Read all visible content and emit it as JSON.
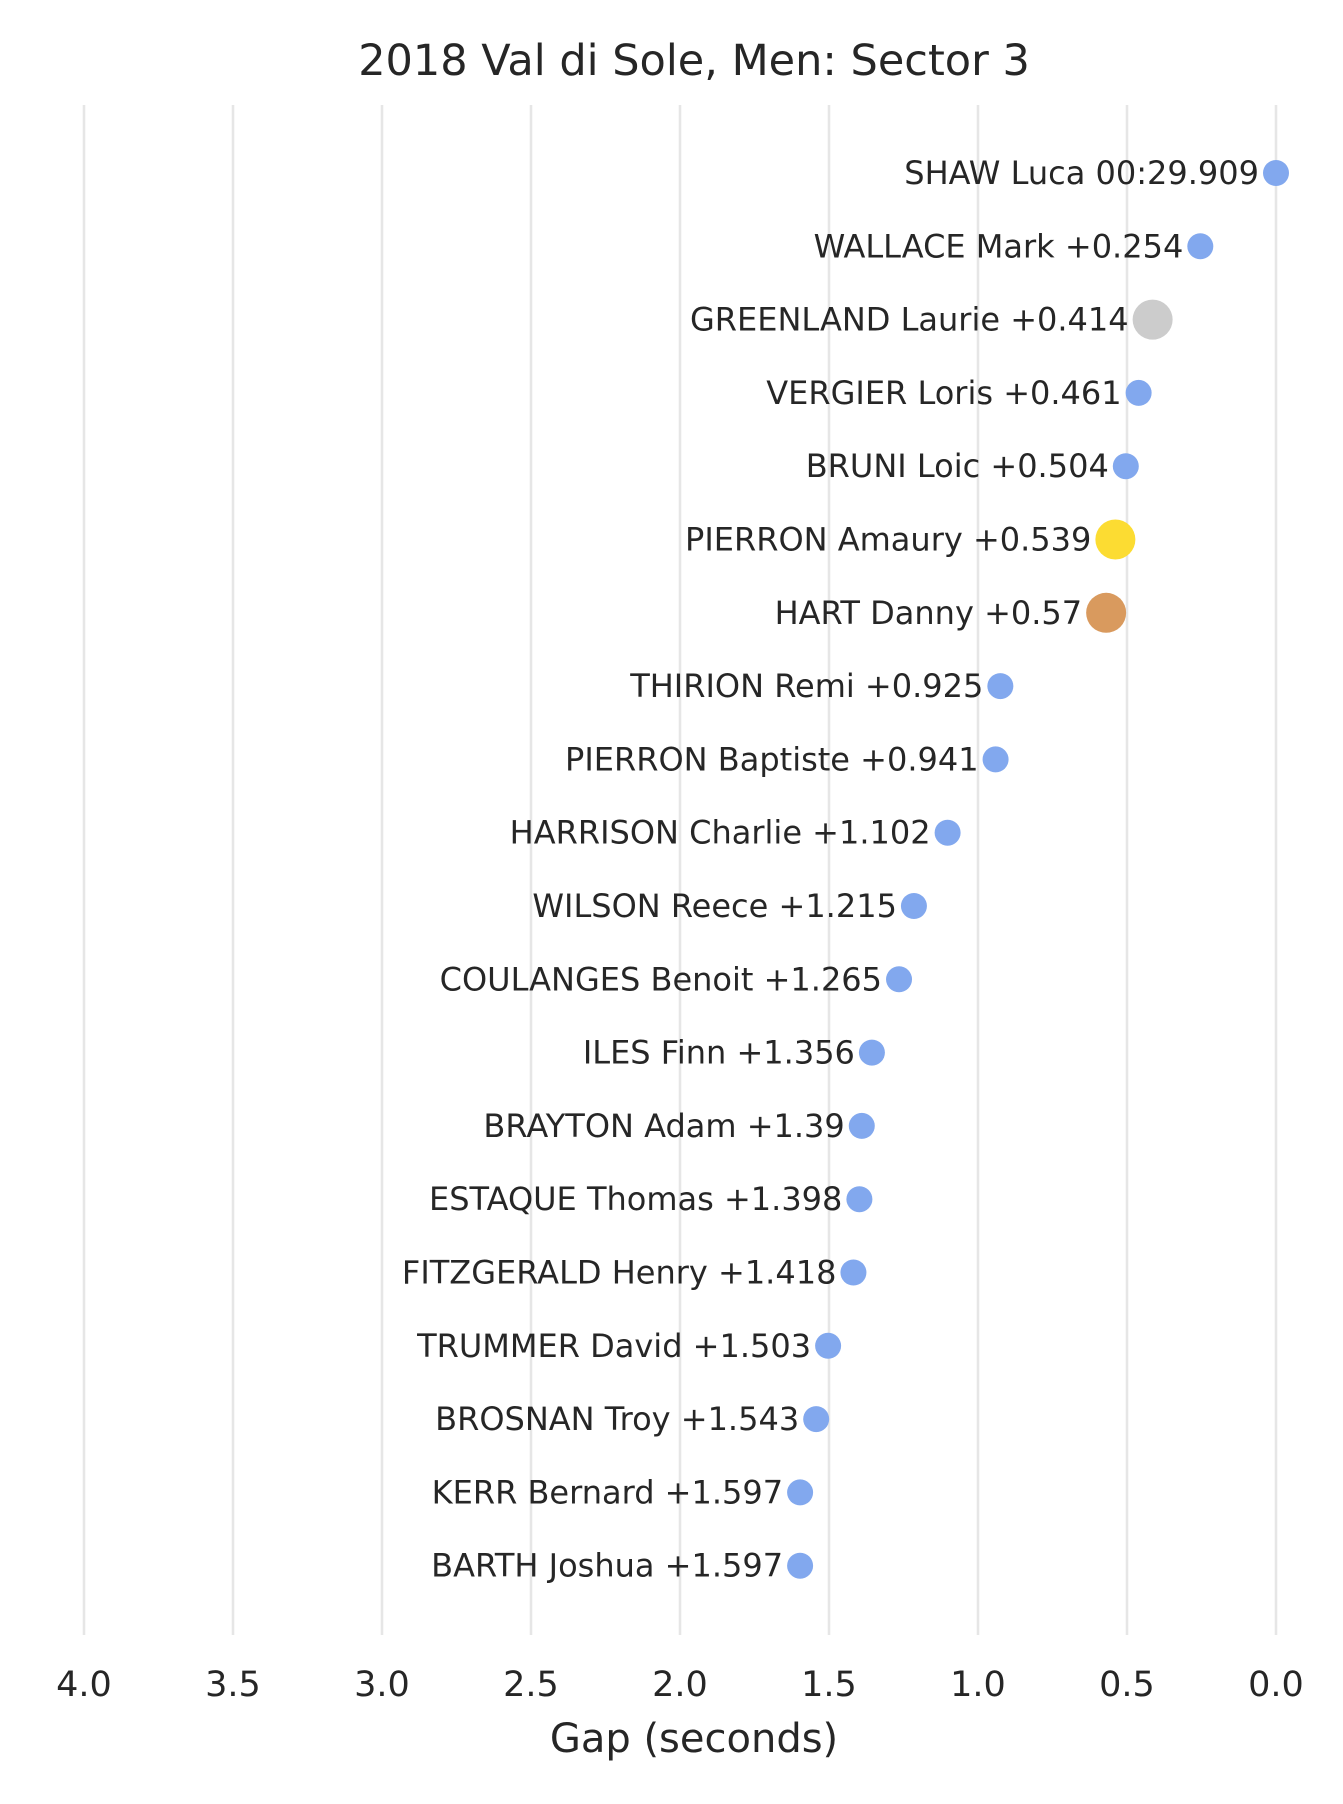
{
  "chart_data": {
    "type": "scatter",
    "title": "2018 Val di Sole, Men: Sector 3",
    "xlabel": "Gap (seconds)",
    "ylabel": "",
    "xlim": [
      4.0,
      0.0
    ],
    "x_axis_reversed": true,
    "xticks": [
      "4.0",
      "3.5",
      "3.0",
      "2.5",
      "2.0",
      "1.5",
      "1.0",
      "0.5",
      "0.0"
    ],
    "grid": "vertical",
    "legend": "none",
    "colors": {
      "default": "#82a8ee",
      "gold": "#fcdc32",
      "silver": "#cccccc",
      "bronze": "#d99a5e"
    },
    "points": [
      {
        "rider": "SHAW Luca",
        "gap": 0.0,
        "label": "SHAW Luca 00:29.909",
        "medal": "none"
      },
      {
        "rider": "WALLACE Mark",
        "gap": 0.254,
        "label": "WALLACE Mark +0.254",
        "medal": "none"
      },
      {
        "rider": "GREENLAND Laurie",
        "gap": 0.414,
        "label": "GREENLAND Laurie +0.414",
        "medal": "silver"
      },
      {
        "rider": "VERGIER Loris",
        "gap": 0.461,
        "label": "VERGIER Loris +0.461",
        "medal": "none"
      },
      {
        "rider": "BRUNI Loic",
        "gap": 0.504,
        "label": "BRUNI Loic +0.504",
        "medal": "none"
      },
      {
        "rider": "PIERRON Amaury",
        "gap": 0.539,
        "label": "PIERRON Amaury +0.539",
        "medal": "gold"
      },
      {
        "rider": "HART Danny",
        "gap": 0.57,
        "label": "HART Danny +0.57",
        "medal": "bronze"
      },
      {
        "rider": "THIRION Remi",
        "gap": 0.925,
        "label": "THIRION Remi +0.925",
        "medal": "none"
      },
      {
        "rider": "PIERRON Baptiste",
        "gap": 0.941,
        "label": "PIERRON Baptiste +0.941",
        "medal": "none"
      },
      {
        "rider": "HARRISON Charlie",
        "gap": 1.102,
        "label": "HARRISON Charlie +1.102",
        "medal": "none"
      },
      {
        "rider": "WILSON Reece",
        "gap": 1.215,
        "label": "WILSON Reece +1.215",
        "medal": "none"
      },
      {
        "rider": "COULANGES Benoit",
        "gap": 1.265,
        "label": "COULANGES Benoit +1.265",
        "medal": "none"
      },
      {
        "rider": "ILES Finn",
        "gap": 1.356,
        "label": "ILES Finn +1.356",
        "medal": "none"
      },
      {
        "rider": "BRAYTON Adam",
        "gap": 1.39,
        "label": "BRAYTON Adam +1.39",
        "medal": "none"
      },
      {
        "rider": "ESTAQUE Thomas",
        "gap": 1.398,
        "label": "ESTAQUE Thomas +1.398",
        "medal": "none"
      },
      {
        "rider": "FITZGERALD Henry",
        "gap": 1.418,
        "label": "FITZGERALD Henry +1.418",
        "medal": "none"
      },
      {
        "rider": "TRUMMER David",
        "gap": 1.503,
        "label": "TRUMMER David +1.503",
        "medal": "none"
      },
      {
        "rider": "BROSNAN Troy",
        "gap": 1.543,
        "label": "BROSNAN Troy +1.543",
        "medal": "none"
      },
      {
        "rider": "KERR Bernard",
        "gap": 1.597,
        "label": "KERR Bernard +1.597",
        "medal": "none"
      },
      {
        "rider": "BARTH Joshua",
        "gap": 1.597,
        "label": "BARTH Joshua +1.597",
        "medal": "none"
      }
    ]
  }
}
